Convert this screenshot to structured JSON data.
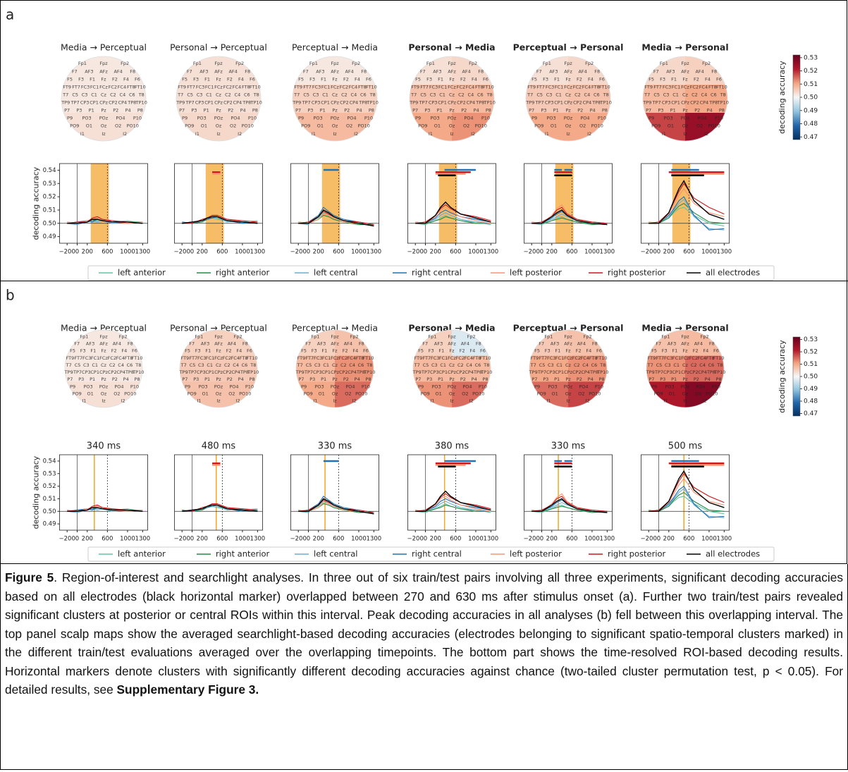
{
  "panels": [
    {
      "label": "a",
      "maps": [
        {
          "title": "Media → Perceptual",
          "bold": false,
          "values": [
            0.502,
            0.502,
            0.502,
            0.502,
            0.503,
            0.503
          ]
        },
        {
          "title": "Personal → Perceptual",
          "bold": false,
          "values": [
            0.503,
            0.503,
            0.503,
            0.503,
            0.504,
            0.504
          ]
        },
        {
          "title": "Perceptual → Media",
          "bold": false,
          "values": [
            0.502,
            0.502,
            0.505,
            0.505,
            0.508,
            0.508
          ]
        },
        {
          "title": "Personal → Media",
          "bold": true,
          "values": [
            0.503,
            0.504,
            0.507,
            0.508,
            0.51,
            0.512
          ]
        },
        {
          "title": "Perceptual → Personal",
          "bold": true,
          "values": [
            0.503,
            0.504,
            0.506,
            0.507,
            0.51,
            0.51
          ]
        },
        {
          "title": "Media → Personal",
          "bold": true,
          "values": [
            0.504,
            0.505,
            0.508,
            0.51,
            0.518,
            0.525
          ]
        }
      ],
      "interval": [
        270,
        630
      ]
    },
    {
      "label": "b",
      "maps": [
        {
          "title": "Media → Perceptual",
          "bold": false,
          "values": [
            0.502,
            0.502,
            0.502,
            0.502,
            0.503,
            0.503
          ]
        },
        {
          "title": "Personal → Perceptual",
          "bold": false,
          "values": [
            0.505,
            0.505,
            0.506,
            0.506,
            0.507,
            0.507
          ]
        },
        {
          "title": "Perceptual → Media",
          "bold": false,
          "values": [
            0.505,
            0.507,
            0.508,
            0.512,
            0.51,
            0.515
          ]
        },
        {
          "title": "Personal → Media",
          "bold": true,
          "values": [
            0.505,
            0.497,
            0.508,
            0.508,
            0.512,
            0.515
          ]
        },
        {
          "title": "Perceptual → Personal",
          "bold": true,
          "values": [
            0.506,
            0.507,
            0.51,
            0.512,
            0.515,
            0.518
          ]
        },
        {
          "title": "Media → Personal",
          "bold": true,
          "values": [
            0.507,
            0.508,
            0.512,
            0.515,
            0.522,
            0.528
          ]
        }
      ],
      "peaks": [
        {
          "value": 340,
          "label": "340 ms"
        },
        {
          "value": 480,
          "label": "480 ms"
        },
        {
          "value": 330,
          "label": "330 ms"
        },
        {
          "value": 380,
          "label": "380 ms"
        },
        {
          "value": 330,
          "label": "330 ms"
        },
        {
          "value": 500,
          "label": "500 ms"
        }
      ]
    }
  ],
  "scalp": {
    "electrode_rows": [
      [
        "Fp1",
        "Fpz",
        "Fp2"
      ],
      [
        "F7",
        "AF3",
        "AFz",
        "AF4",
        "F8"
      ],
      [
        "F5",
        "F3",
        "F1",
        "Fz",
        "F2",
        "F4",
        "F6"
      ],
      [
        "FT9",
        "FT7",
        "FC3",
        "FC1",
        "FCz",
        "FC2",
        "FC4",
        "FT8",
        "FT10"
      ],
      [
        "T7",
        "C5",
        "C3",
        "C1",
        "Cz",
        "C2",
        "C4",
        "C6",
        "T8"
      ],
      [
        "TP9",
        "TP7",
        "CP3",
        "CP1",
        "CPz",
        "CP2",
        "CP4",
        "TP8",
        "TP10"
      ],
      [
        "P7",
        "P3",
        "P1",
        "Pz",
        "P2",
        "P4",
        "P8"
      ],
      [
        "P9",
        "PO3",
        "POz",
        "PO4",
        "P10"
      ],
      [
        "PO9",
        "O1",
        "Oz",
        "O2",
        "PO10"
      ],
      [
        "I1",
        "Iz",
        "I2"
      ]
    ],
    "colormap": [
      "#053061",
      "#2166ac",
      "#92c5de",
      "#f7f7f7",
      "#f4a582",
      "#b2182b",
      "#67001f"
    ],
    "vlim": [
      0.468,
      0.532
    ],
    "colorbar_label": "decoding accuracy",
    "colorbar_ticks": [
      0.47,
      0.48,
      0.49,
      {
        "value": 0.5,
        "label": "0.50"
      },
      0.51,
      0.52,
      0.53
    ]
  },
  "timecourse": {
    "ylabel": "decoding accuracy",
    "x": [
      -200,
      0,
      200,
      300,
      400,
      500,
      700,
      1000,
      1300
    ],
    "xlim": [
      -350,
      1400
    ],
    "ylim": [
      0.485,
      0.545
    ],
    "xticks": [
      {
        "value": -200,
        "label": "−200"
      },
      0,
      200,
      600,
      1000,
      1300
    ],
    "yticks": [
      0.49,
      {
        "value": 0.5,
        "label": "0.50"
      },
      0.51,
      0.52,
      0.53,
      0.54
    ],
    "chance": 0.5,
    "onset": 0,
    "offset": 600,
    "series": [
      {
        "name": "left anterior",
        "color": "#66c2a4"
      },
      {
        "name": "right anterior",
        "color": "#238b45"
      },
      {
        "name": "left central",
        "color": "#6baed6"
      },
      {
        "name": "right central",
        "color": "#2171b5"
      },
      {
        "name": "left posterior",
        "color": "#fc9272"
      },
      {
        "name": "right posterior",
        "color": "#cb181d"
      },
      {
        "name": "all electrodes",
        "color": "#000000"
      }
    ],
    "plots": [
      {
        "values": [
          [
            0.5,
            0.501,
            0.502,
            0.503,
            0.502,
            0.503,
            0.501,
            0.502,
            0.5
          ],
          [
            0.501,
            0.5,
            0.501,
            0.502,
            0.503,
            0.502,
            0.501,
            0.501,
            0.501
          ],
          [
            0.5,
            0.499,
            0.501,
            0.502,
            0.501,
            0.502,
            0.5,
            0.501,
            0.5
          ],
          [
            0.5,
            0.501,
            0.502,
            0.501,
            0.503,
            0.502,
            0.502,
            0.5,
            0.501
          ],
          [
            0.501,
            0.5,
            0.502,
            0.503,
            0.504,
            0.503,
            0.501,
            0.5,
            0.501
          ],
          [
            0.5,
            0.501,
            0.501,
            0.504,
            0.505,
            0.503,
            0.502,
            0.501,
            0.5
          ],
          [
            0.5,
            0.5,
            0.501,
            0.503,
            0.503,
            0.502,
            0.501,
            0.501,
            0.5
          ]
        ],
        "clusters": []
      },
      {
        "values": [
          [
            0.5,
            0.501,
            0.502,
            0.503,
            0.504,
            0.503,
            0.502,
            0.501,
            0.502
          ],
          [
            0.501,
            0.5,
            0.501,
            0.503,
            0.505,
            0.504,
            0.502,
            0.501,
            0.5
          ],
          [
            0.5,
            0.501,
            0.502,
            0.504,
            0.505,
            0.504,
            0.501,
            0.502,
            0.501
          ],
          [
            0.501,
            0.5,
            0.502,
            0.503,
            0.504,
            0.505,
            0.502,
            0.5,
            0.501
          ],
          [
            0.5,
            0.501,
            0.502,
            0.504,
            0.506,
            0.505,
            0.503,
            0.501,
            0.5
          ],
          [
            0.5,
            0.5,
            0.503,
            0.504,
            0.506,
            0.506,
            0.503,
            0.502,
            0.501
          ],
          [
            0.5,
            0.501,
            0.502,
            0.504,
            0.505,
            0.505,
            0.502,
            0.501,
            0.5
          ]
        ],
        "clusters": [
          {
            "series": 5,
            "start": 400,
            "end": 560
          },
          {
            "series": 4,
            "start": 400,
            "end": 560
          }
        ]
      },
      {
        "values": [
          [
            0.5,
            0.501,
            0.504,
            0.508,
            0.506,
            0.504,
            0.502,
            0.5,
            0.498
          ],
          [
            0.501,
            0.5,
            0.503,
            0.506,
            0.505,
            0.503,
            0.501,
            0.499,
            0.499
          ],
          [
            0.5,
            0.499,
            0.505,
            0.51,
            0.507,
            0.505,
            0.502,
            0.5,
            0.498
          ],
          [
            0.5,
            0.501,
            0.506,
            0.512,
            0.509,
            0.506,
            0.503,
            0.501,
            0.499
          ],
          [
            0.501,
            0.5,
            0.503,
            0.507,
            0.506,
            0.504,
            0.501,
            0.5,
            0.498
          ],
          [
            0.5,
            0.501,
            0.505,
            0.509,
            0.507,
            0.505,
            0.502,
            0.501,
            0.499
          ],
          [
            0.5,
            0.5,
            0.505,
            0.51,
            0.508,
            0.505,
            0.502,
            0.5,
            0.498
          ]
        ],
        "clusters": [
          {
            "series": 3,
            "start": 300,
            "end": 600
          }
        ]
      },
      {
        "values": [
          [
            0.5,
            0.499,
            0.502,
            0.504,
            0.506,
            0.504,
            0.502,
            0.501,
            0.499
          ],
          [
            0.501,
            0.5,
            0.502,
            0.503,
            0.505,
            0.504,
            0.502,
            0.5,
            0.5
          ],
          [
            0.5,
            0.501,
            0.503,
            0.506,
            0.508,
            0.506,
            0.503,
            0.501,
            0.5
          ],
          [
            0.5,
            0.5,
            0.504,
            0.508,
            0.51,
            0.508,
            0.505,
            0.503,
            0.501
          ],
          [
            0.501,
            0.5,
            0.505,
            0.51,
            0.512,
            0.509,
            0.505,
            0.502,
            0.5
          ],
          [
            0.5,
            0.501,
            0.506,
            0.511,
            0.514,
            0.511,
            0.507,
            0.505,
            0.502
          ],
          [
            0.5,
            0.5,
            0.506,
            0.512,
            0.516,
            0.512,
            0.507,
            0.504,
            0.501
          ]
        ],
        "clusters": [
          {
            "series": 3,
            "start": 380,
            "end": 1000
          },
          {
            "series": 5,
            "start": 200,
            "end": 900
          },
          {
            "series": 4,
            "start": 200,
            "end": 800
          },
          {
            "series": 6,
            "start": 250,
            "end": 600
          }
        ]
      },
      {
        "values": [
          [
            0.5,
            0.499,
            0.502,
            0.504,
            0.505,
            0.503,
            0.501,
            0.5,
            0.499
          ],
          [
            0.501,
            0.5,
            0.502,
            0.503,
            0.504,
            0.503,
            0.501,
            0.499,
            0.5
          ],
          [
            0.5,
            0.501,
            0.503,
            0.505,
            0.507,
            0.505,
            0.502,
            0.5,
            0.499
          ],
          [
            0.5,
            0.5,
            0.504,
            0.507,
            0.509,
            0.506,
            0.502,
            0.501,
            0.5
          ],
          [
            0.501,
            0.5,
            0.506,
            0.511,
            0.514,
            0.508,
            0.503,
            0.5,
            0.499
          ],
          [
            0.5,
            0.501,
            0.505,
            0.51,
            0.512,
            0.507,
            0.503,
            0.501,
            0.5
          ],
          [
            0.5,
            0.5,
            0.505,
            0.508,
            0.51,
            0.506,
            0.502,
            0.5,
            0.499
          ]
        ],
        "clusters": [
          {
            "series": 3,
            "start": 250,
            "end": 400
          },
          {
            "series": 3,
            "start": 450,
            "end": 600
          },
          {
            "series": 5,
            "start": 250,
            "end": 600
          },
          {
            "series": 6,
            "start": 250,
            "end": 600
          }
        ]
      },
      {
        "values": [
          [
            0.5,
            0.501,
            0.504,
            0.508,
            0.511,
            0.512,
            0.506,
            0.5,
            0.498
          ],
          [
            0.501,
            0.5,
            0.504,
            0.509,
            0.513,
            0.515,
            0.508,
            0.501,
            0.5
          ],
          [
            0.5,
            0.501,
            0.505,
            0.51,
            0.515,
            0.518,
            0.505,
            0.496,
            0.495
          ],
          [
            0.5,
            0.5,
            0.506,
            0.511,
            0.517,
            0.52,
            0.506,
            0.495,
            0.496
          ],
          [
            0.501,
            0.5,
            0.507,
            0.514,
            0.521,
            0.526,
            0.515,
            0.508,
            0.505
          ],
          [
            0.5,
            0.501,
            0.508,
            0.516,
            0.524,
            0.53,
            0.519,
            0.512,
            0.507
          ],
          [
            0.5,
            0.5,
            0.508,
            0.517,
            0.526,
            0.532,
            0.517,
            0.507,
            0.503
          ]
        ],
        "clusters": [
          {
            "series": 3,
            "start": 250,
            "end": 800
          },
          {
            "series": 5,
            "start": 200,
            "end": 1300
          },
          {
            "series": 4,
            "start": 250,
            "end": 1300
          },
          {
            "series": 6,
            "start": 250,
            "end": 900
          }
        ]
      }
    ]
  },
  "caption": [
    {
      "text": "Figure 5",
      "bold": true
    },
    {
      "text": ". Region-of-interest and searchlight analyses. In three out of six train/test pairs involving all three experiments, significant decoding accuracies based on all electrodes (black horizontal marker) overlapped between 270 and 630 ms after stimulus onset (a). Further two train/test pairs revealed significant clusters at posterior or central ROIs within this interval. Peak decoding accuracies in all analyses (b) fell between this overlapping interval. The top panel scalp maps show the averaged searchlight-based decoding accuracies (electrodes belonging to significant spatio-temporal clusters marked) in the different train/test evaluations averaged over the overlapping timepoints. The bottom part shows the time-resolved ROI-based decoding results. Horizontal markers denote clusters with significantly different decoding accuracies against chance (two-tailed cluster permutation test, p < 0.05). For detailed results, see ",
      "bold": false
    },
    {
      "text": "Supplementary Figure 3.",
      "bold": true
    }
  ]
}
